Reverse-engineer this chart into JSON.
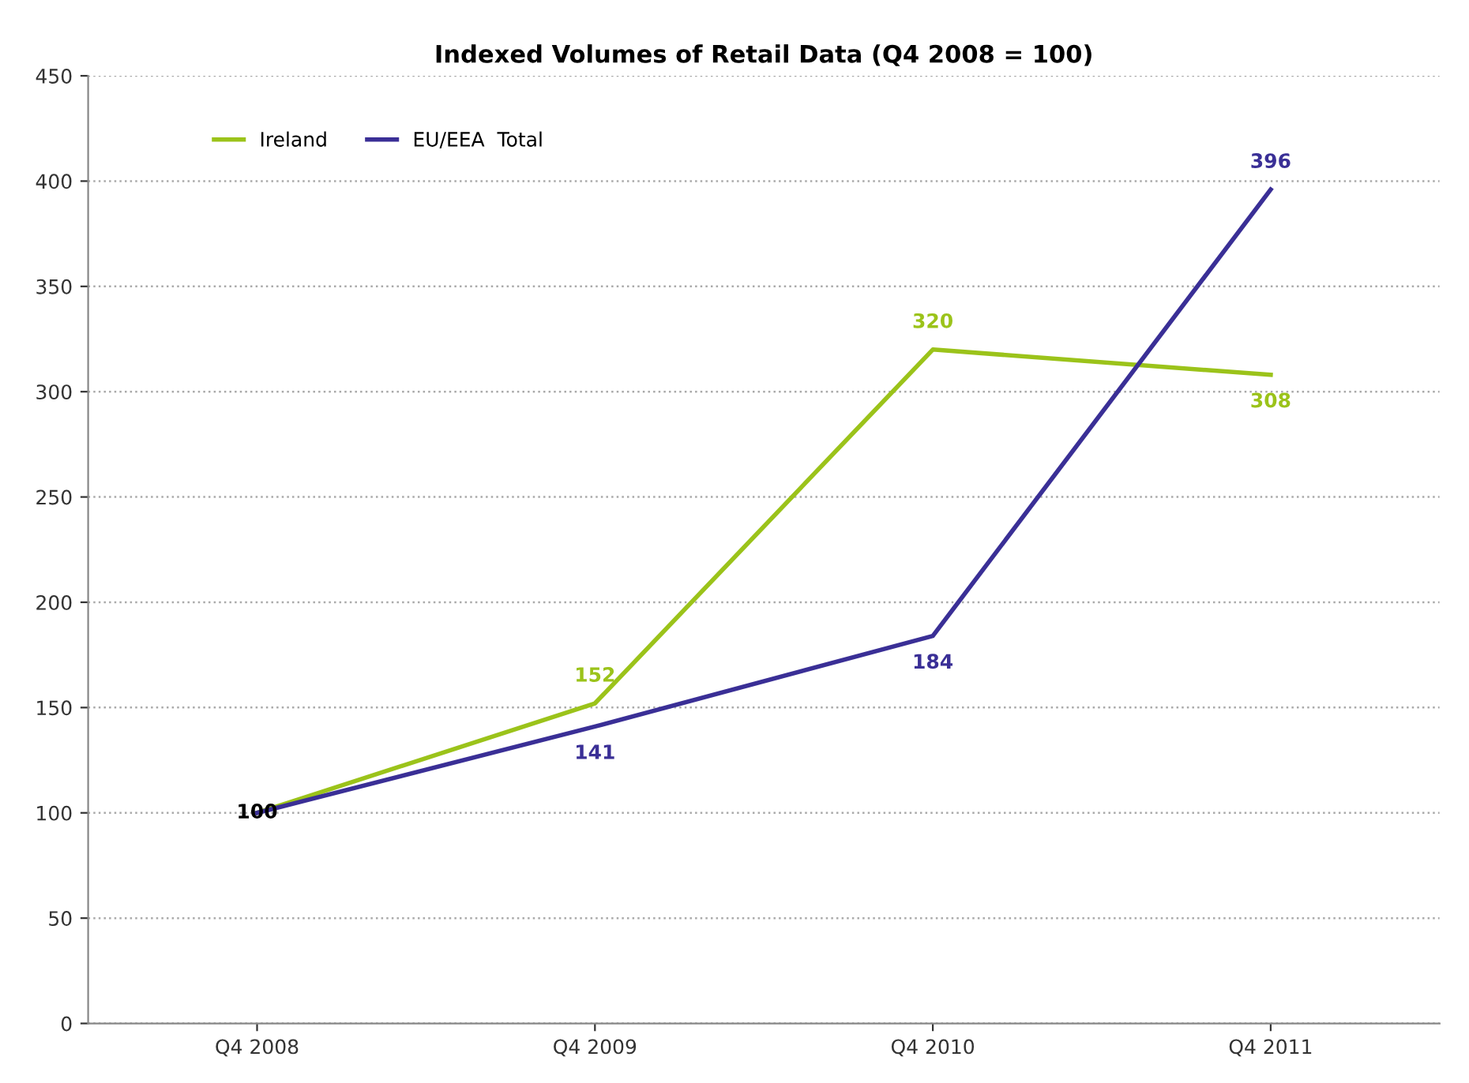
{
  "chart_data": {
    "type": "line",
    "title": "Indexed Volumes of Retail Data (Q4 2008 = 100)",
    "categories": [
      "Q4 2008",
      "Q4 2009",
      "Q4 2010",
      "Q4 2011"
    ],
    "series": [
      {
        "name": "Ireland",
        "color": "#9bc31a",
        "values": [
          100,
          152,
          320,
          308
        ],
        "value_labels": [
          null,
          "152",
          "320",
          "308"
        ]
      },
      {
        "name": "EU/EEA  Total",
        "color": "#3a2f96",
        "values": [
          100,
          141,
          184,
          396
        ],
        "value_labels": [
          "100",
          "141",
          "184",
          "396"
        ]
      }
    ],
    "ylim": [
      0,
      450
    ],
    "yticks": [
      0,
      50,
      100,
      150,
      200,
      250,
      300,
      350,
      400,
      450
    ],
    "grid": "y",
    "legend": "top left",
    "marker": "none",
    "line_style": "solid"
  }
}
